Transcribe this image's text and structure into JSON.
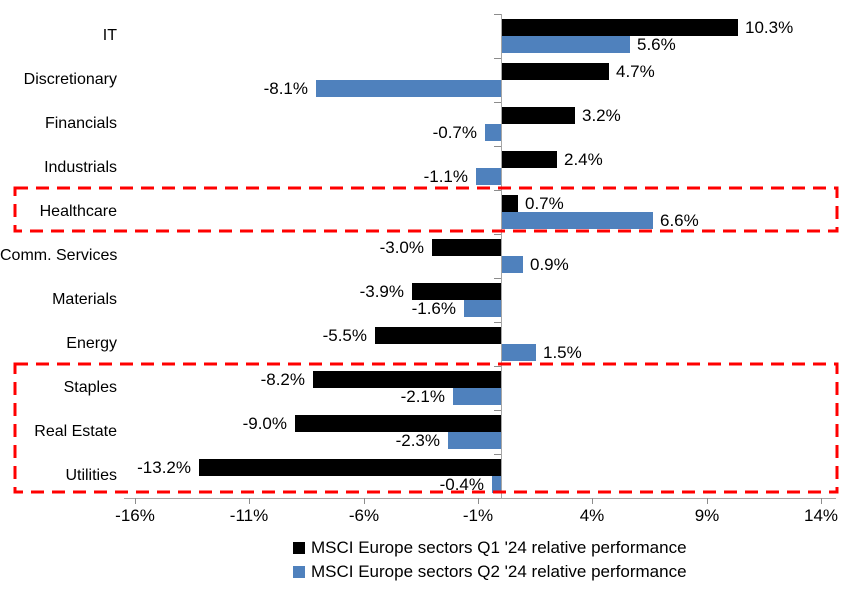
{
  "chart_data": {
    "type": "bar",
    "orientation": "horizontal",
    "title": "",
    "categories": [
      "IT",
      "Discretionary",
      "Financials",
      "Industrials",
      "Healthcare",
      "Comm. Services",
      "Materials",
      "Energy",
      "Staples",
      "Real Estate",
      "Utilities"
    ],
    "series": [
      {
        "name": "MSCI Europe sectors Q1 '24 relative performance",
        "color": "#000000",
        "values": [
          10.3,
          4.7,
          3.2,
          2.4,
          0.7,
          -3.0,
          -3.9,
          -5.5,
          -8.2,
          -9.0,
          -13.2
        ],
        "labels": [
          "10.3%",
          "4.7%",
          "3.2%",
          "2.4%",
          "0.7%",
          "-3.0%",
          "-3.9%",
          "-5.5%",
          "-8.2%",
          "-9.0%",
          "-13.2%"
        ]
      },
      {
        "name": "MSCI Europe sectors Q2 '24 relative performance",
        "color": "#4F81BD",
        "values": [
          5.6,
          -8.1,
          -0.7,
          -1.1,
          6.6,
          0.9,
          -1.6,
          1.5,
          -2.1,
          -2.3,
          -0.4
        ],
        "labels": [
          "5.6%",
          "-8.1%",
          "-0.7%",
          "-1.1%",
          "6.6%",
          "0.9%",
          "-1.6%",
          "1.5%",
          "-2.1%",
          "-2.3%",
          "-0.4%"
        ]
      }
    ],
    "x_axis": {
      "unit": "%",
      "tick_values": [
        -16,
        -11,
        -6,
        -1,
        4,
        9,
        14
      ],
      "tick_labels": [
        "-16%",
        "-11%",
        "-6%",
        "-1%",
        "4%",
        "9%",
        "14%"
      ],
      "range": [
        -17,
        14.7
      ]
    },
    "grid": "off",
    "legend_position": "bottom-center",
    "axis_color": "#A6A6A6",
    "annotations": {
      "highlight_boxes": [
        {
          "name": "healthcare-highlight",
          "categories": [
            "Healthcare"
          ],
          "style": "dashed",
          "color": "#FF0000"
        },
        {
          "name": "defensive-sectors-highlight",
          "categories": [
            "Staples",
            "Real Estate",
            "Utilities"
          ],
          "style": "dashed",
          "color": "#FF0000"
        }
      ]
    }
  }
}
